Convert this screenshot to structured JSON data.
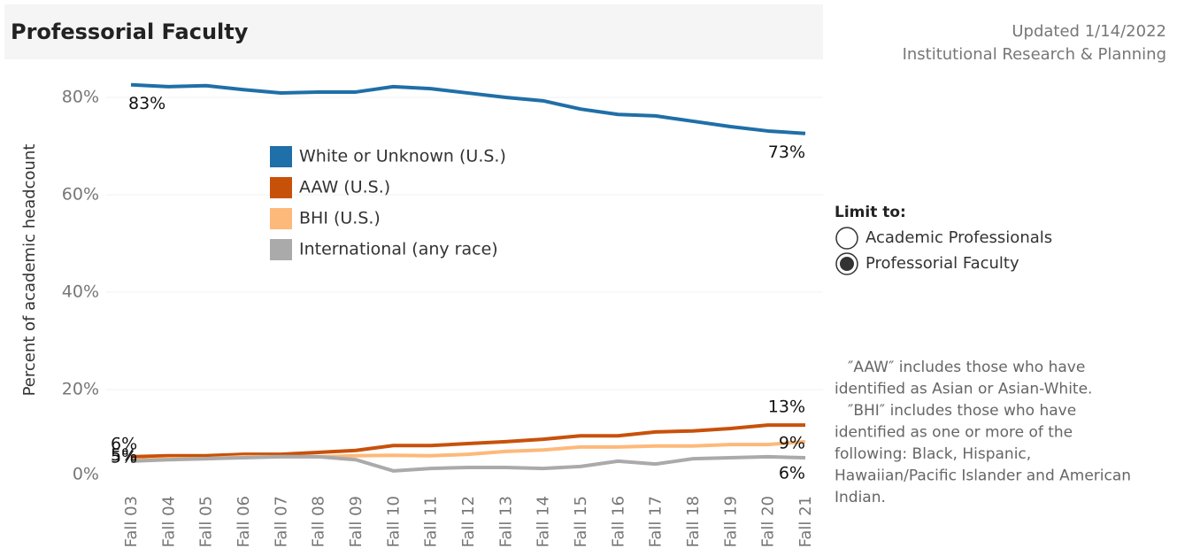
{
  "header": {
    "title": "Professorial Faculty",
    "updated": "Updated 1/14/2022",
    "source": "Institutional Research & Planning"
  },
  "filter": {
    "title": "Limit to:",
    "options": [
      "Academic Professionals",
      "Professorial Faculty"
    ],
    "selected": 1
  },
  "notes": [
    "″AAW″ includes those who have",
    "identified as Asian or Asian-White.",
    "″BHI″ includes those who have",
    "identified as one or more of the",
    "following: Black, Hispanic,",
    "Hawaiian/Pacific Islander and American",
    "Indian."
  ],
  "chart_data": {
    "type": "line",
    "y_label": "Percent of academic headcount",
    "categories": [
      "Fall 03",
      "Fall 04",
      "Fall 05",
      "Fall 06",
      "Fall 07",
      "Fall 08",
      "Fall 09",
      "Fall 10",
      "Fall 11",
      "Fall 12",
      "Fall 13",
      "Fall 14",
      "Fall 15",
      "Fall 16",
      "Fall 17",
      "Fall 18",
      "Fall 19",
      "Fall 20",
      "Fall 21"
    ],
    "series": [
      {
        "name": "White or Unknown (U.S.)",
        "color": "#1f6fa8",
        "values": [
          82.6,
          82.2,
          82.4,
          81.6,
          80.9,
          81.1,
          81.1,
          82.2,
          81.8,
          80.9,
          80,
          79.3,
          77.6,
          76.5,
          76.2,
          75.1,
          74,
          73.1,
          72.6
        ],
        "value_labels": [
          "83%",
          null,
          null,
          null,
          null,
          null,
          null,
          null,
          null,
          null,
          null,
          null,
          null,
          null,
          null,
          null,
          null,
          null,
          "73%"
        ]
      },
      {
        "name": "AAW (U.S.)",
        "color": "#c8510a",
        "values": [
          6.2,
          6.4,
          6.4,
          6.7,
          6.7,
          7.1,
          7.5,
          8.5,
          8.5,
          8.9,
          9.3,
          9.8,
          10.5,
          10.5,
          11.3,
          11.5,
          12,
          12.7,
          12.7
        ],
        "value_labels": [
          "6%",
          null,
          null,
          null,
          null,
          null,
          null,
          null,
          null,
          null,
          null,
          null,
          null,
          null,
          null,
          null,
          null,
          null,
          "13%"
        ]
      },
      {
        "name": "BHI (U.S.)",
        "color": "#fdb97a",
        "values": [
          5.4,
          5.8,
          5.8,
          6.2,
          6.2,
          6.2,
          6.4,
          6.5,
          6.4,
          6.7,
          7.3,
          7.6,
          8.2,
          8.2,
          8.4,
          8.4,
          8.7,
          8.7,
          9.3
        ],
        "value_labels": [
          "5%",
          null,
          null,
          null,
          null,
          null,
          null,
          null,
          null,
          null,
          null,
          null,
          null,
          null,
          null,
          null,
          null,
          null,
          "9%"
        ]
      },
      {
        "name": "International (any race)",
        "color": "#aaaaaa",
        "values": [
          5.3,
          5.6,
          5.8,
          6,
          6.2,
          6.2,
          5.6,
          3.3,
          3.8,
          4,
          4,
          3.8,
          4.2,
          5.3,
          4.7,
          5.8,
          6,
          6.2,
          6
        ],
        "value_labels": [
          "5%",
          null,
          null,
          null,
          null,
          null,
          null,
          null,
          null,
          null,
          null,
          null,
          null,
          null,
          null,
          null,
          null,
          null,
          "6%"
        ]
      }
    ],
    "ylim": [
      0,
      88
    ],
    "yticks": [
      {
        "value": 0,
        "label": "0%"
      },
      {
        "value": 20,
        "label": "20%"
      },
      {
        "value": 40,
        "label": "40%"
      },
      {
        "value": 60,
        "label": "60%"
      },
      {
        "value": 80,
        "label": "80%"
      }
    ],
    "grid": true
  }
}
